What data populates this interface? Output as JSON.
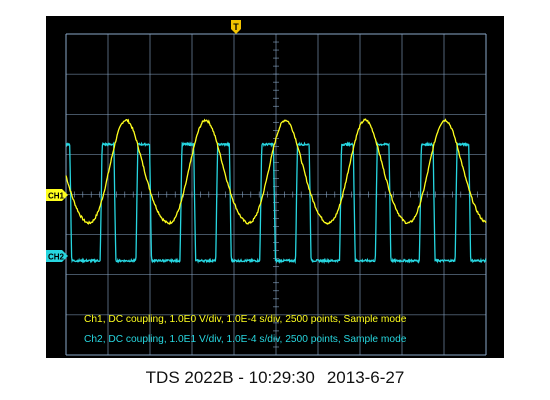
{
  "window": {
    "caption_model": "TDS 2022B - 10:29:30",
    "caption_date": "2013-6-27"
  },
  "scope": {
    "trigger_marker": "T",
    "ch1_tag": "CH1",
    "ch2_tag": "CH2",
    "ch1_info": "Ch1, DC coupling, 1.0E0 V/div, 1.0E-4 s/div, 2500 points, Sample mode",
    "ch2_info": "Ch2, DC coupling, 1.0E1 V/div, 1.0E-4 s/div, 2500 points, Sample mode"
  },
  "colors": {
    "screen_bg": "#000000",
    "grid": "#8aa8c8",
    "ch1": "#ffff1e",
    "ch2": "#27d6e0",
    "trigger": "#f2c300"
  },
  "chart_data": {
    "type": "line",
    "grid": true,
    "x_divisions": 10,
    "y_divisions": 8,
    "xlim_div": [
      -5,
      5
    ],
    "ylim_div": [
      -4,
      4
    ],
    "series": [
      {
        "name": "Ch1",
        "ground_div": 0.0,
        "period_div": 1.9,
        "phase_div": -3.55,
        "min_div": -0.8,
        "max_div": 1.75,
        "shape": "raised-cosine"
      },
      {
        "name": "Ch2",
        "ground_div": -1.65,
        "period_div": 1.9,
        "pulse_centers_div": [
          -4.0,
          -3.15
        ],
        "low_div": -1.65,
        "high_div": 1.25,
        "pulse_width_div": 0.28,
        "shape": "pulse-pair"
      }
    ]
  }
}
